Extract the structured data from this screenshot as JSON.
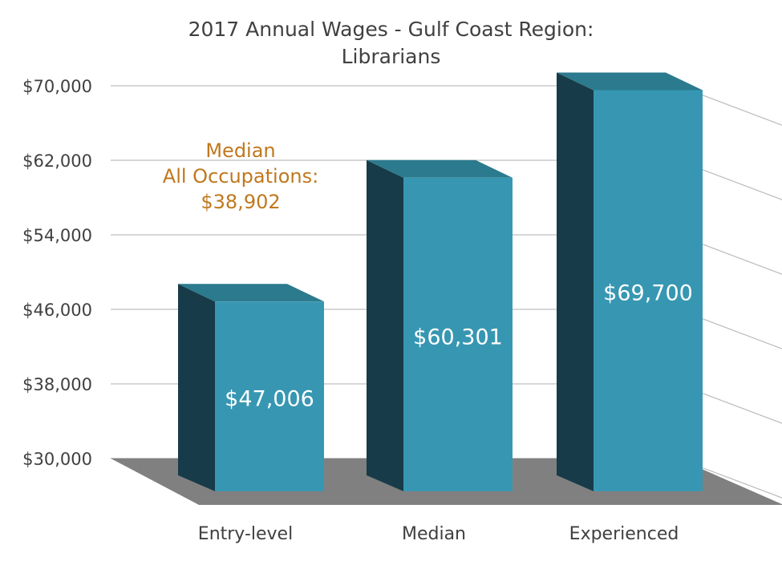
{
  "chart_data": {
    "type": "bar",
    "title_lines": [
      "2017 Annual Wages - Gulf Coast Region:",
      "Librarians"
    ],
    "categories": [
      "Entry-level",
      "Median",
      "Experienced"
    ],
    "values": [
      47006,
      60301,
      69700
    ],
    "value_labels": [
      "$47,006",
      "$60,301",
      "$69,700"
    ],
    "y_ticks": [
      30000,
      38000,
      46000,
      54000,
      62000,
      70000
    ],
    "y_tick_labels": [
      "$30,000",
      "$38,000",
      "$46,000",
      "$54,000",
      "$62,000",
      "$70,000"
    ],
    "ylim": [
      30000,
      70000
    ],
    "grid": true,
    "style": "3d",
    "annotation": [
      "Median",
      "All Occupations:",
      "$38,902"
    ]
  },
  "colors": {
    "bar_front": "#3797B2",
    "bar_side": "#173B48",
    "bar_top": "#2B7A8E",
    "floor": "#808080",
    "gridline": "#BFBFBF",
    "annotation": "#C0781E",
    "title": "#404040",
    "axis_text": "#404040",
    "value_text": "#FFFFFF"
  }
}
